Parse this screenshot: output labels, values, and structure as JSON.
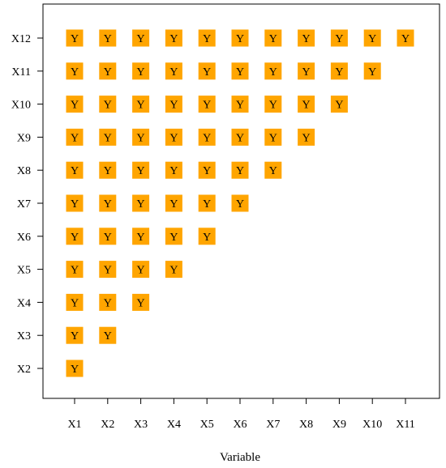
{
  "chart_data": {
    "type": "heatmap",
    "title": "",
    "xlabel": "Variable",
    "ylabel": "",
    "x_categories": [
      "X1",
      "X2",
      "X3",
      "X4",
      "X5",
      "X6",
      "X7",
      "X8",
      "X9",
      "X10",
      "X11"
    ],
    "y_categories": [
      "X2",
      "X3",
      "X4",
      "X5",
      "X6",
      "X7",
      "X8",
      "X9",
      "X10",
      "X11",
      "X12"
    ],
    "cell_text": "Y",
    "cell_color": "#FFA500",
    "grid": false,
    "rule": "cell shown where column index < row index (lower triangle)"
  }
}
